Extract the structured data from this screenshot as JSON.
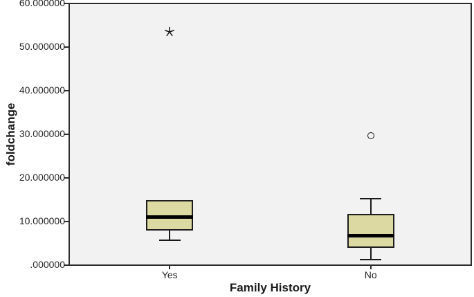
{
  "chart_data": {
    "type": "boxplot",
    "title": "",
    "xlabel": "Family History",
    "ylabel": "foldchange",
    "ylim": [
      0,
      60
    ],
    "grid": false,
    "legend": false,
    "yticks": [
      {
        "value": 0,
        "label": ".000000"
      },
      {
        "value": 10,
        "label": "10.000000"
      },
      {
        "value": 20,
        "label": "20.000000"
      },
      {
        "value": 30,
        "label": "30.000000"
      },
      {
        "value": 40,
        "label": "40.000000"
      },
      {
        "value": 50,
        "label": "50.000000"
      },
      {
        "value": 60,
        "label": "60.000000"
      }
    ],
    "categories": [
      "Yes",
      "No"
    ],
    "series": [
      {
        "category": "Yes",
        "whisker_low": 5.7,
        "q1": 7.9,
        "median": 11.0,
        "q3": 15.0,
        "whisker_high": 15.0,
        "outliers": [
          {
            "value": 53.5,
            "marker": "star-extreme"
          }
        ]
      },
      {
        "category": "No",
        "whisker_low": 1.2,
        "q1": 4.0,
        "median": 6.7,
        "q3": 11.7,
        "whisker_high": 15.3,
        "outliers": [
          {
            "value": 29.7,
            "marker": "circle-mild"
          }
        ]
      }
    ]
  },
  "colors": {
    "box_fill": "#dcd9a3",
    "box_border": "#1e1e1e",
    "median": "#000000",
    "whisker": "#1a1a1a",
    "plot_background": "#f2f2f2",
    "frame_border": "#2d2d2d",
    "text": "#262626",
    "page_background": "#ffffff"
  }
}
